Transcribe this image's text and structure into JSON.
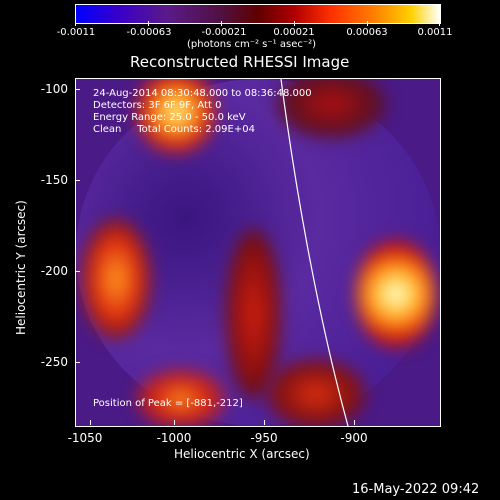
{
  "colorbar": {
    "tick_labels": [
      "-0.0011",
      "-0.00063",
      "-0.00021",
      "0.00021",
      "0.00063",
      "0.0011"
    ],
    "units": "(photons cm⁻² s⁻¹ asec⁻²)"
  },
  "title": "Reconstructed RHESSI Image",
  "info": {
    "line1": "24-Aug-2014 08:30:48.000 to 08:36:48.000",
    "line2": "Detectors: 3F 6F 9F, Att 0",
    "line3": "Energy Range: 25.0 - 50.0 keV",
    "line4": "Clean     Total Counts: 2.09E+04",
    "peak": "Position of Peak = [-881,-212]"
  },
  "axes": {
    "xlabel": "Heliocentric X (arcsec)",
    "ylabel": "Heliocentric Y (arcsec)",
    "xticks": [
      "-1050",
      "-1000",
      "-950",
      "-900"
    ],
    "yticks": [
      "-100",
      "-150",
      "-200",
      "-250"
    ]
  },
  "timestamp": "16-May-2022 09:42"
}
